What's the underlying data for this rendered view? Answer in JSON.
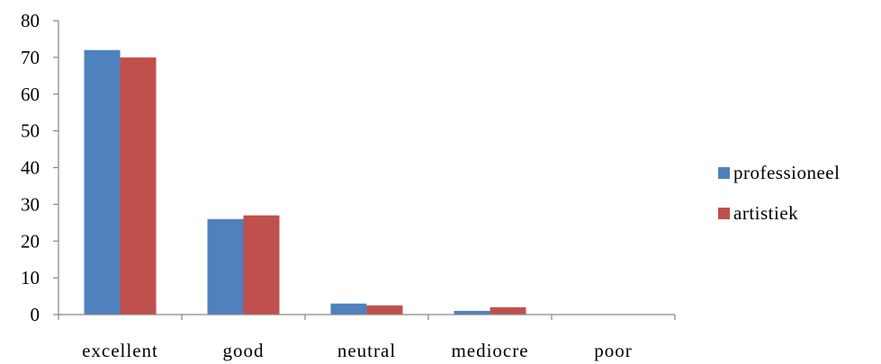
{
  "chart_data": {
    "type": "bar",
    "title": "",
    "xlabel": "",
    "ylabel": "",
    "categories": [
      "excellent",
      "good",
      "neutral",
      "mediocre",
      "poor"
    ],
    "series": [
      {
        "name": "professioneel",
        "values": [
          72,
          26,
          3,
          1,
          0
        ],
        "color": "#4f81bd"
      },
      {
        "name": "artistiek",
        "values": [
          70,
          27,
          2.5,
          2,
          0
        ],
        "color": "#c0504d"
      }
    ],
    "ylim": [
      0,
      80
    ],
    "yticks": [
      0,
      10,
      20,
      30,
      40,
      50,
      60,
      70,
      80
    ],
    "grid": false,
    "legend_position": "right"
  }
}
